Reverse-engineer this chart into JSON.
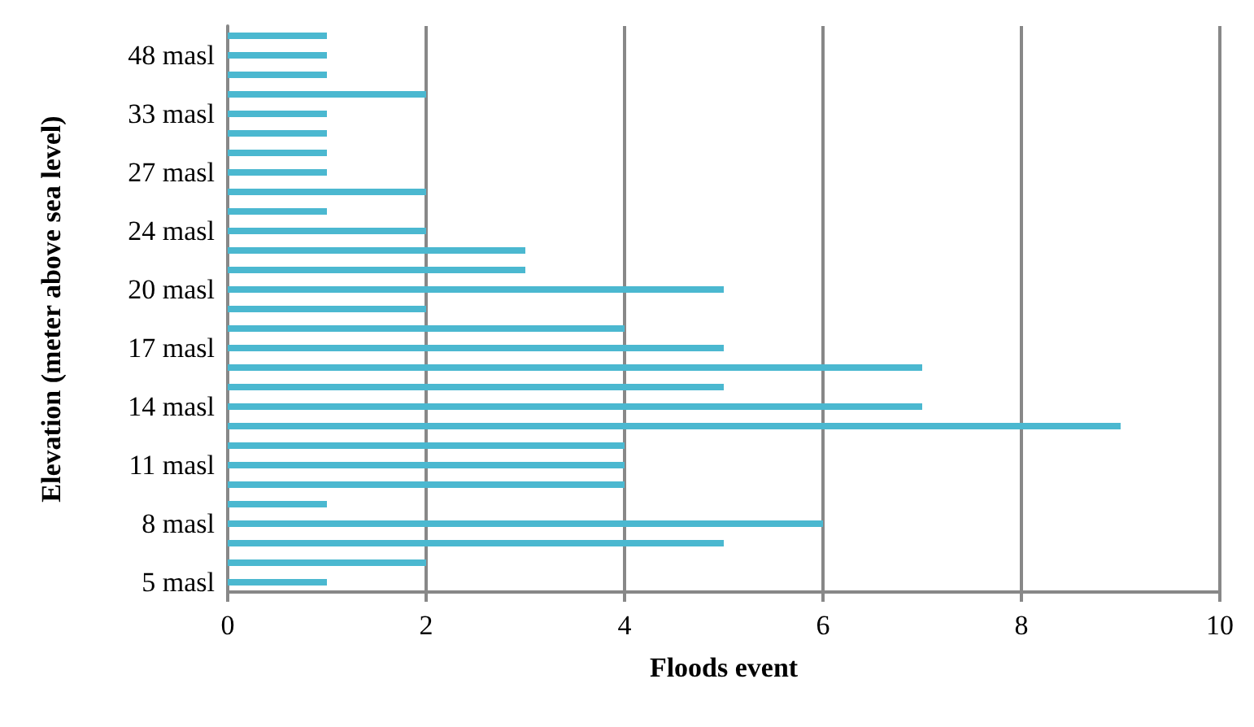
{
  "chart_data": {
    "type": "bar",
    "orientation": "horizontal",
    "xlabel": "Floods event",
    "ylabel": "Elevation (meter above sea level)",
    "categories": [
      null,
      "48 masl",
      null,
      null,
      "33 masl",
      null,
      null,
      "27 masl",
      null,
      null,
      "24 masl",
      null,
      null,
      "20 masl",
      null,
      null,
      "17 masl",
      null,
      null,
      "14 masl",
      null,
      null,
      "11 masl",
      null,
      null,
      "8 masl",
      null,
      null,
      "5 masl"
    ],
    "values": [
      1,
      1,
      1,
      2,
      1,
      1,
      1,
      1,
      2,
      1,
      2,
      3,
      3,
      5,
      2,
      4,
      5,
      7,
      5,
      7,
      9,
      4,
      4,
      4,
      1,
      6,
      5,
      2,
      1
    ],
    "color": "#4bb8d0",
    "xlim": [
      0,
      10
    ],
    "xticks": [
      0,
      2,
      4,
      6,
      8,
      10
    ],
    "grid": "x"
  }
}
